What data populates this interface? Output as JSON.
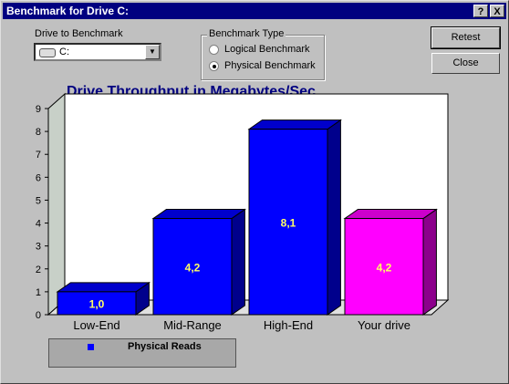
{
  "window": {
    "title": "Benchmark for Drive C:",
    "help_label": "?",
    "close_label": "X"
  },
  "drive": {
    "label": "Drive to Benchmark",
    "value": "C:"
  },
  "benchmark_type": {
    "label": "Benchmark Type",
    "options": [
      {
        "label": "Logical Benchmark",
        "selected": false
      },
      {
        "label": "Physical Benchmark",
        "selected": true
      }
    ]
  },
  "buttons": {
    "retest": "Retest",
    "close": "Close"
  },
  "chart_data": {
    "type": "bar",
    "title": "Drive Throughput in Megabytes/Sec.",
    "categories": [
      "Low-End",
      "Mid-Range",
      "High-End",
      "Your drive"
    ],
    "series": [
      {
        "name": "Physical Reads",
        "values": [
          1.0,
          4.2,
          8.1,
          4.2
        ]
      }
    ],
    "data_labels": [
      "1,0",
      "4,2",
      "8,1",
      "4,2"
    ],
    "bar_colors": [
      "#0000ff",
      "#0000ff",
      "#0000ff",
      "#ff00ff"
    ],
    "ylim": [
      0,
      9
    ],
    "yticks": [
      "0",
      "1",
      "2",
      "3",
      "4",
      "5",
      "6",
      "7",
      "8",
      "9"
    ],
    "grid": false,
    "legend": "bottom-left"
  }
}
